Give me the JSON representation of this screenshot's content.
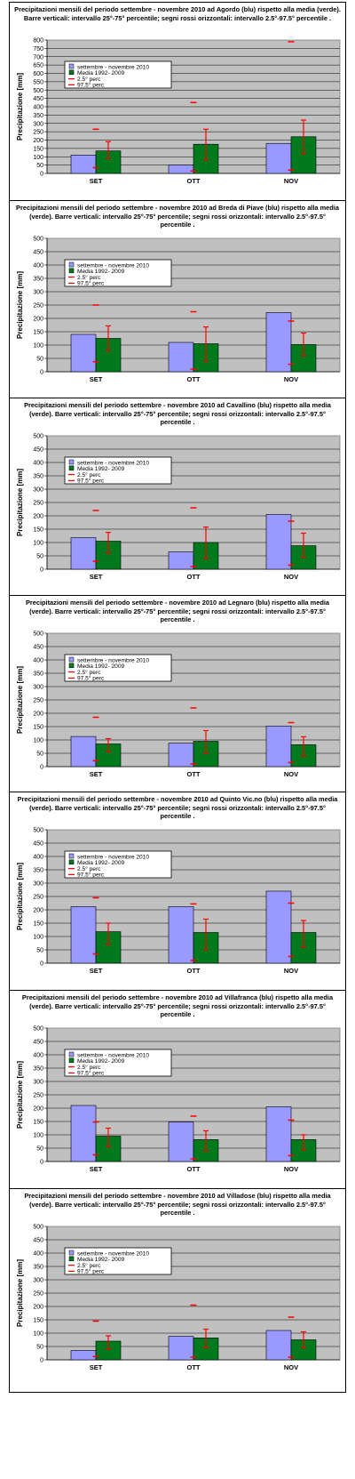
{
  "chart_data": [
    {
      "type": "bar",
      "title": "Precipitazioni mensili del periodo settembre - novembre 2010 ad Agordo (blu) rispetto alla media (verde). Barre verticali: intervallo 25°-75° percentile; segni rossi orizzontali: intervallo 2.5°-97.5° percentile .",
      "ylabel": "Precipitazione [mm]",
      "ylim": [
        0,
        800
      ],
      "ytick": 50,
      "categories": [
        "SET",
        "OTT",
        "NOV"
      ],
      "series": [
        {
          "name": "settembre - novembre 2010",
          "values": [
            110,
            50,
            180
          ],
          "color": "#9999ff"
        },
        {
          "name": "Media 1992- 2009",
          "values": [
            135,
            175,
            220
          ],
          "color": "#007a1c"
        }
      ],
      "p25_75": [
        [
          90,
          190
        ],
        [
          80,
          265
        ],
        [
          120,
          320
        ]
      ],
      "p2_5_97_5": [
        [
          35,
          265
        ],
        [
          15,
          425
        ],
        [
          20,
          790
        ]
      ],
      "legend_extra": [
        "2.5° perc",
        "97.5° perc"
      ],
      "grid": "horizontal",
      "legend": "top-left"
    },
    {
      "type": "bar",
      "title": "Precipitazioni mensili del periodo settembre - novembre 2010 ad Breda di Piave (blu) rispetto alla media (verde). Barre verticali: intervallo 25°-75° percentile; segni rossi orizzontali: intervallo 2.5°-97.5° percentile .",
      "ylabel": "Precipitazione [mm]",
      "ylim": [
        0,
        500
      ],
      "ytick": 50,
      "categories": [
        "SET",
        "OTT",
        "NOV"
      ],
      "series": [
        {
          "name": "settembre - novembre 2010",
          "values": [
            140,
            110,
            222
          ],
          "color": "#9999ff"
        },
        {
          "name": "Media 1992- 2009",
          "values": [
            125,
            105,
            102
          ],
          "color": "#007a1c"
        }
      ],
      "p25_75": [
        [
          80,
          172
        ],
        [
          40,
          168
        ],
        [
          60,
          145
        ]
      ],
      "p2_5_97_5": [
        [
          38,
          250
        ],
        [
          10,
          225
        ],
        [
          28,
          190
        ]
      ],
      "legend_extra": [
        "2.5° perc",
        "97.5° perc"
      ],
      "grid": "horizontal",
      "legend": "top-left"
    },
    {
      "type": "bar",
      "title": "Precipitazioni mensili del periodo settembre - novembre 2010 ad Cavallino (blu) rispetto alla media (verde). Barre verticali: intervallo 25°-75° percentile; segni rossi orizzontali: intervallo 2.5°-97.5° percentile .",
      "ylabel": "Precipitazione [mm]",
      "ylim": [
        0,
        500
      ],
      "ytick": 50,
      "categories": [
        "SET",
        "OTT",
        "NOV"
      ],
      "series": [
        {
          "name": "settembre - novembre 2010",
          "values": [
            118,
            65,
            205
          ],
          "color": "#9999ff"
        },
        {
          "name": "Media 1992- 2009",
          "values": [
            105,
            100,
            88
          ],
          "color": "#007a1c"
        }
      ],
      "p25_75": [
        [
          60,
          138
        ],
        [
          40,
          158
        ],
        [
          45,
          135
        ]
      ],
      "p2_5_97_5": [
        [
          30,
          220
        ],
        [
          10,
          230
        ],
        [
          15,
          180
        ]
      ],
      "legend_extra": [
        "2.5° perc",
        "97.5° perc"
      ],
      "grid": "horizontal",
      "legend": "top-left"
    },
    {
      "type": "bar",
      "title": "Precipitazioni mensili del periodo settembre - novembre 2010 ad Legnaro (blu) rispetto alla media (verde). Barre verticali: intervallo 25°-75° percentile; segni rossi orizzontali: intervallo 2.5°-97.5° percentile .",
      "ylabel": "Precipitazione [mm]",
      "ylim": [
        0,
        500
      ],
      "ytick": 50,
      "categories": [
        "SET",
        "OTT",
        "NOV"
      ],
      "series": [
        {
          "name": "settembre - novembre 2010",
          "values": [
            113,
            88,
            152
          ],
          "color": "#9999ff"
        },
        {
          "name": "Media 1992- 2009",
          "values": [
            85,
            95,
            82
          ],
          "color": "#007a1c"
        }
      ],
      "p25_75": [
        [
          55,
          105
        ],
        [
          50,
          135
        ],
        [
          40,
          112
        ]
      ],
      "p2_5_97_5": [
        [
          22,
          185
        ],
        [
          10,
          220
        ],
        [
          15,
          165
        ]
      ],
      "legend_extra": [
        "2.5° perc",
        "97.5° perc"
      ],
      "grid": "horizontal",
      "legend": "top-left"
    },
    {
      "type": "bar",
      "title": "Precipitazioni mensili del periodo settembre - novembre 2010 ad Quinto Vic.no (blu) rispetto alla media (verde). Barre verticali: intervallo 25°-75° percentile; segni rossi orizzontali: intervallo 2.5°-97.5° percentile .",
      "ylabel": "Precipitazione [mm]",
      "ylim": [
        0,
        500
      ],
      "ytick": 50,
      "categories": [
        "SET",
        "OTT",
        "NOV"
      ],
      "series": [
        {
          "name": "settembre - novembre 2010",
          "values": [
            212,
            212,
            270
          ],
          "color": "#9999ff"
        },
        {
          "name": "Media 1992- 2009",
          "values": [
            118,
            115,
            115
          ],
          "color": "#007a1c"
        }
      ],
      "p25_75": [
        [
          70,
          150
        ],
        [
          50,
          165
        ],
        [
          60,
          160
        ]
      ],
      "p2_5_97_5": [
        [
          35,
          245
        ],
        [
          10,
          222
        ],
        [
          25,
          225
        ]
      ],
      "legend_extra": [
        "2.5° perc",
        "97.5° perc"
      ],
      "grid": "horizontal",
      "legend": "top-left"
    },
    {
      "type": "bar",
      "title": "Precipitazioni mensili del periodo settembre - novembre 2010 ad Villafranca (blu) rispetto alla media (verde). Barre verticali: intervallo 25°-75° percentile; segni rossi orizzontali: intervallo 2.5°-97.5° percentile .",
      "ylabel": "Precipitazione [mm]",
      "ylim": [
        0,
        500
      ],
      "ytick": 50,
      "categories": [
        "SET",
        "OTT",
        "NOV"
      ],
      "series": [
        {
          "name": "settembre - novembre 2010",
          "values": [
            210,
            148,
            205
          ],
          "color": "#9999ff"
        },
        {
          "name": "Media 1992- 2009",
          "values": [
            95,
            82,
            82
          ],
          "color": "#007a1c"
        }
      ],
      "p25_75": [
        [
          55,
          125
        ],
        [
          40,
          115
        ],
        [
          45,
          100
        ]
      ],
      "p2_5_97_5": [
        [
          25,
          148
        ],
        [
          10,
          170
        ],
        [
          22,
          155
        ]
      ],
      "legend_extra": [
        "2.5° perc",
        "97.5° perc"
      ],
      "grid": "horizontal",
      "legend": "top-left"
    },
    {
      "type": "bar",
      "title": "Precipitazioni mensili del periodo settembre - novembre 2010 ad Villadose (blu) rispetto alla media (verde). Barre verticali: intervallo 25°-75° percentile; segni rossi orizzontali: intervallo 2.5°-97.5° percentile .",
      "ylabel": "Precipitazione [mm]",
      "ylim": [
        0,
        500
      ],
      "ytick": 50,
      "categories": [
        "SET",
        "OTT",
        "NOV"
      ],
      "series": [
        {
          "name": "settembre - novembre 2010",
          "values": [
            35,
            88,
            110
          ],
          "color": "#9999ff"
        },
        {
          "name": "Media 1992- 2009",
          "values": [
            70,
            82,
            75
          ],
          "color": "#007a1c"
        }
      ],
      "p25_75": [
        [
          40,
          90
        ],
        [
          45,
          115
        ],
        [
          45,
          105
        ]
      ],
      "p2_5_97_5": [
        [
          12,
          145
        ],
        [
          10,
          205
        ],
        [
          10,
          160
        ]
      ],
      "legend_extra": [
        "2.5° perc",
        "97.5° perc"
      ],
      "grid": "horizontal",
      "legend": "top-left"
    }
  ]
}
